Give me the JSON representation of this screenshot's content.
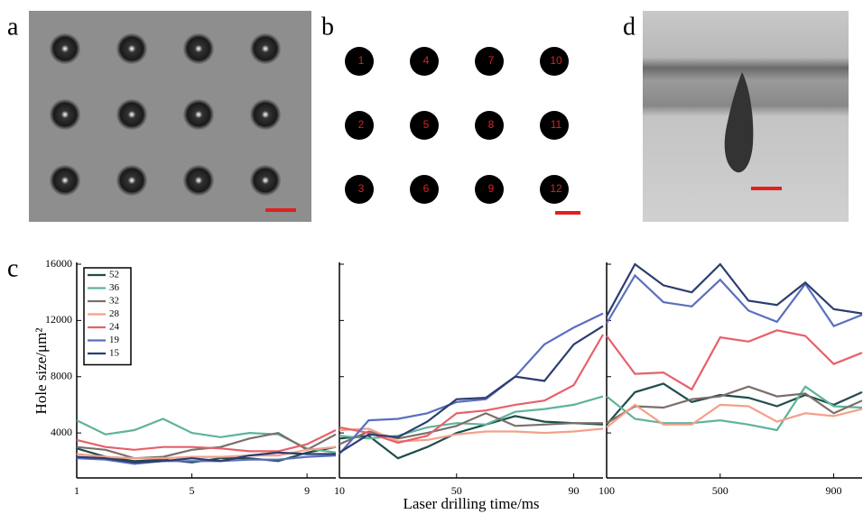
{
  "panel_labels": [
    "a",
    "b",
    "c",
    "d"
  ],
  "photo_b": {
    "labels": [
      "1",
      "2",
      "3",
      "4",
      "5",
      "6",
      "7",
      "8",
      "9",
      "10",
      "11",
      "12"
    ]
  },
  "chart_data": [
    {
      "type": "line",
      "ylabel": "Hole size/μm²",
      "ylim": [
        800,
        16000
      ],
      "yticks": [
        4000,
        8000,
        12000,
        16000
      ],
      "xlim": [
        1,
        10
      ],
      "xticks": [
        1,
        5,
        9
      ],
      "x": [
        1,
        2,
        3,
        4,
        5,
        6,
        7,
        8,
        9,
        10
      ],
      "legend": "upper left",
      "series": [
        {
          "name": "52",
          "color": "#1f4d4a",
          "values": [
            2900,
            2300,
            2000,
            2100,
            1900,
            2200,
            2200,
            2000,
            2600,
            3000
          ]
        },
        {
          "name": "36",
          "color": "#5fb39a",
          "values": [
            4900,
            3900,
            4200,
            5000,
            4000,
            3700,
            4000,
            3900,
            2900,
            2600
          ]
        },
        {
          "name": "32",
          "color": "#7a6f6a",
          "values": [
            3000,
            2800,
            2200,
            2300,
            2800,
            3000,
            3600,
            4000,
            2800,
            3900
          ]
        },
        {
          "name": "28",
          "color": "#f4a08a",
          "values": [
            2500,
            2300,
            2200,
            2200,
            2300,
            2300,
            2400,
            2400,
            2800,
            3000
          ]
        },
        {
          "name": "24",
          "color": "#e8606a",
          "values": [
            3500,
            3000,
            2800,
            3000,
            3000,
            2900,
            2700,
            2700,
            3200,
            4200
          ]
        },
        {
          "name": "19",
          "color": "#5a6fc0",
          "values": [
            2200,
            2100,
            1800,
            2000,
            2000,
            2000,
            2100,
            2100,
            2300,
            2400
          ]
        },
        {
          "name": "15",
          "color": "#2c3d6e",
          "values": [
            2300,
            2200,
            1900,
            2000,
            2200,
            2000,
            2400,
            2600,
            2500,
            2500
          ]
        }
      ]
    },
    {
      "type": "line",
      "xlabel": "Laser drilling time/ms",
      "ylim": [
        800,
        16000
      ],
      "xlim": [
        10,
        100
      ],
      "xticks": [
        10,
        50,
        90
      ],
      "x": [
        10,
        20,
        30,
        40,
        50,
        60,
        70,
        80,
        90,
        100
      ],
      "series": [
        {
          "color": "#1f4d4a",
          "values": [
            3600,
            3800,
            2200,
            3000,
            4000,
            4600,
            5200,
            4800,
            4700,
            4600
          ]
        },
        {
          "color": "#5fb39a",
          "values": [
            3800,
            3600,
            3800,
            4400,
            4700,
            4600,
            5500,
            5700,
            6000,
            6600
          ]
        },
        {
          "color": "#7a6f6a",
          "values": [
            3200,
            4100,
            3600,
            4000,
            4500,
            5400,
            4500,
            4600,
            4700,
            4700
          ]
        },
        {
          "color": "#f4a08a",
          "values": [
            4200,
            4300,
            3400,
            3500,
            3900,
            4100,
            4100,
            4000,
            4100,
            4300
          ]
        },
        {
          "color": "#e8606a",
          "values": [
            4400,
            4000,
            3300,
            3800,
            5400,
            5600,
            6000,
            6300,
            7400,
            11000
          ]
        },
        {
          "color": "#5a6fc0",
          "values": [
            2500,
            4900,
            5000,
            5400,
            6200,
            6400,
            8000,
            10300,
            11500,
            12500
          ]
        },
        {
          "color": "#2c3d6e",
          "values": [
            2600,
            3900,
            3700,
            4800,
            6400,
            6500,
            8000,
            7700,
            10300,
            11600
          ]
        }
      ]
    },
    {
      "type": "line",
      "ylim": [
        800,
        16000
      ],
      "xlim": [
        100,
        1000
      ],
      "xticks": [
        100,
        500,
        900
      ],
      "x": [
        100,
        200,
        300,
        400,
        500,
        600,
        700,
        800,
        900,
        1000
      ],
      "series": [
        {
          "color": "#1f4d4a",
          "values": [
            4600,
            6900,
            7500,
            6200,
            6700,
            6500,
            5900,
            6700,
            6000,
            6900
          ]
        },
        {
          "color": "#5fb39a",
          "values": [
            6600,
            5000,
            4700,
            4700,
            4900,
            4600,
            4200,
            7300,
            5900,
            5800
          ]
        },
        {
          "color": "#7a6f6a",
          "values": [
            4700,
            5900,
            5800,
            6400,
            6600,
            7300,
            6600,
            6800,
            5400,
            6300
          ]
        },
        {
          "color": "#f4a08a",
          "values": [
            4400,
            6000,
            4600,
            4600,
            6000,
            5900,
            4800,
            5400,
            5200,
            5700
          ]
        },
        {
          "color": "#e8606a",
          "values": [
            10900,
            8200,
            8300,
            7100,
            10800,
            10500,
            11300,
            10900,
            8900,
            9700
          ]
        },
        {
          "color": "#5a6fc0",
          "values": [
            11800,
            15200,
            13300,
            13000,
            14900,
            12700,
            11900,
            14600,
            11600,
            12400
          ]
        },
        {
          "color": "#2c3d6e",
          "values": [
            12300,
            16000,
            14500,
            14000,
            16000,
            13400,
            13100,
            14700,
            12800,
            12500
          ]
        }
      ]
    }
  ]
}
